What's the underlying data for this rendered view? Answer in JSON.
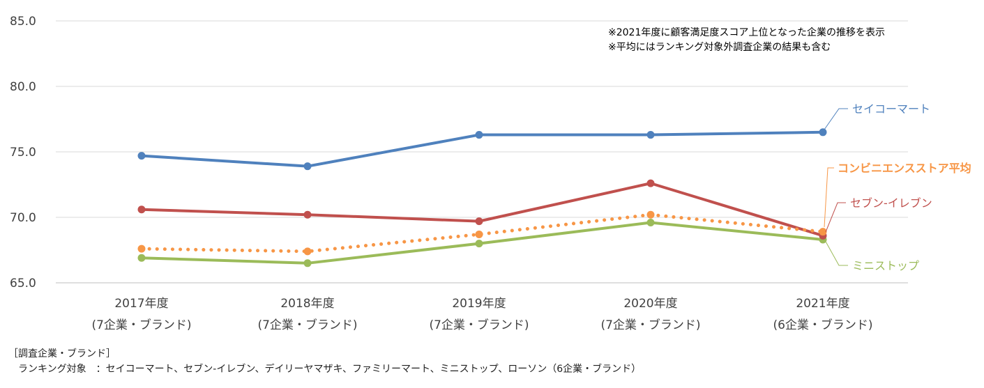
{
  "chart_data": {
    "type": "line",
    "categories": [
      {
        "year": "2017年度",
        "sub": "(7企業・ブランド)"
      },
      {
        "year": "2018年度",
        "sub": "(7企業・ブランド)"
      },
      {
        "year": "2019年度",
        "sub": "(7企業・ブランド)"
      },
      {
        "year": "2020年度",
        "sub": "(7企業・ブランド)"
      },
      {
        "year": "2021年度",
        "sub": "(6企業・ブランド)"
      }
    ],
    "ylim": [
      65.0,
      85.0
    ],
    "yticks": [
      "65.0",
      "70.0",
      "75.0",
      "80.0",
      "85.0"
    ],
    "grid": true,
    "series": [
      {
        "name": "セイコーマート",
        "color": "#4f81bd",
        "style": "solid",
        "bold": false,
        "values": [
          74.7,
          73.9,
          76.3,
          76.3,
          76.5
        ]
      },
      {
        "name": "コンビニエンスストア平均",
        "color": "#f79646",
        "style": "dotted",
        "bold": true,
        "values": [
          67.6,
          67.4,
          68.7,
          70.2,
          68.9
        ]
      },
      {
        "name": "セブン‐イレブン",
        "color": "#c0504d",
        "style": "solid",
        "bold": false,
        "values": [
          70.6,
          70.2,
          69.7,
          72.6,
          68.6
        ]
      },
      {
        "name": "ミニストップ",
        "color": "#9bbb59",
        "style": "solid",
        "bold": false,
        "values": [
          66.9,
          66.5,
          68.0,
          69.6,
          68.3
        ]
      }
    ],
    "notes": [
      "※2021年度に顧客満足度スコア上位となった企業の推移を表示",
      "※平均にはランキング対象外調査企業の結果も含む"
    ]
  },
  "footer": {
    "heading": "［調査企業・ブランド］",
    "line": "　ランキング対象　：セイコーマート、セブン‐イレブン、デイリーヤマザキ、ファミリーマート、ミニストップ、ローソン（6企業・ブランド）"
  }
}
